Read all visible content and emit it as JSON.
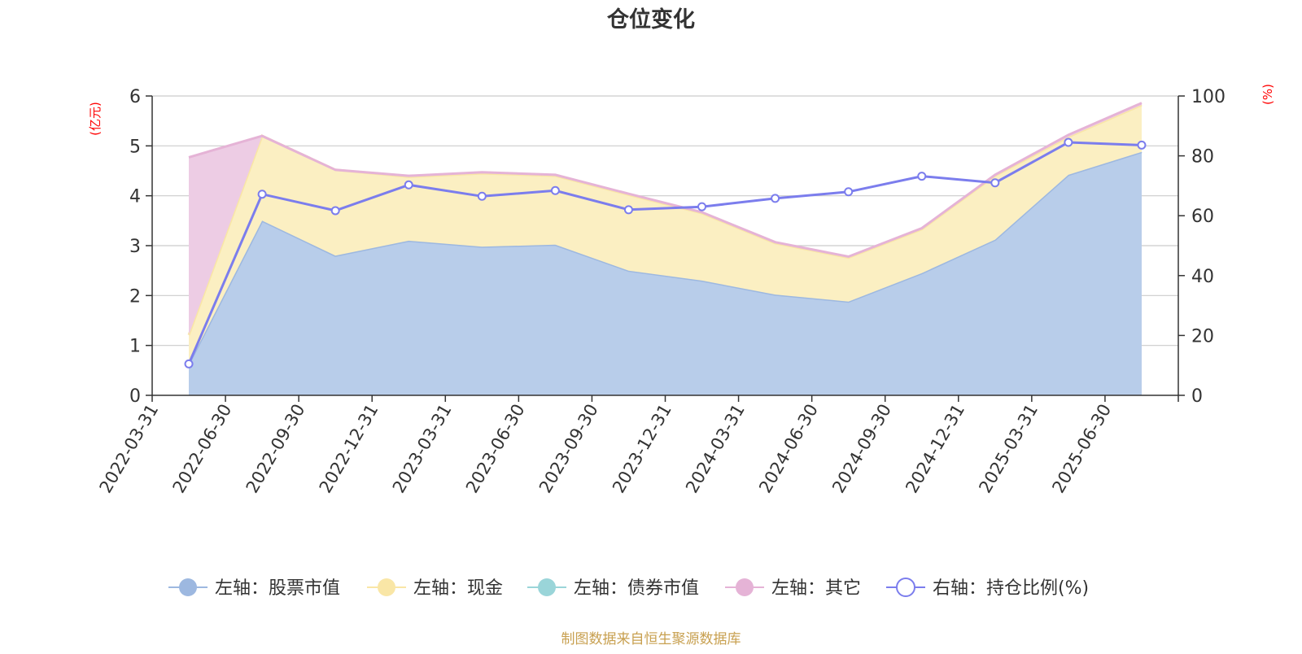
{
  "chart_data": {
    "type": "area",
    "title": "仓位变化",
    "left_axis_unit": "(亿元)",
    "right_axis_unit": "(%)",
    "ylim_left": [
      0,
      6
    ],
    "yticks_left": [
      "0",
      "1",
      "2",
      "3",
      "4",
      "5",
      "6"
    ],
    "ylim_right": [
      0,
      100
    ],
    "yticks_right": [
      "0",
      "20",
      "40",
      "60",
      "80",
      "100"
    ],
    "grid": true,
    "legend_position": "bottom",
    "categories": [
      "2022-03-31",
      "2022-06-30",
      "2022-09-30",
      "2022-12-31",
      "2023-03-31",
      "2023-06-30",
      "2023-09-30",
      "2023-12-31",
      "2024-03-31",
      "2024-06-30",
      "2024-09-30",
      "2024-12-31",
      "2025-03-31",
      "2025-06-30"
    ],
    "series": [
      {
        "name": "左轴：股票市值",
        "axis": "left",
        "kind": "area",
        "color": "#9db8e0",
        "fill": "#b8cdea",
        "values": [
          0.63,
          3.5,
          2.8,
          3.1,
          2.98,
          3.02,
          2.5,
          2.3,
          2.02,
          1.88,
          2.45,
          3.12,
          4.42,
          4.88
        ]
      },
      {
        "name": "左轴：现金",
        "axis": "left",
        "kind": "area",
        "color": "#f9e6a6",
        "fill": "#fbefc2",
        "values": [
          0.58,
          1.7,
          1.72,
          1.28,
          1.47,
          1.38,
          1.52,
          1.35,
          1.03,
          0.88,
          0.88,
          1.28,
          0.76,
          0.94
        ]
      },
      {
        "name": "左轴：债券市值",
        "axis": "left",
        "kind": "area",
        "color": "#9ad5d9",
        "fill": "#b7e2e4",
        "values": [
          0,
          0,
          0,
          0,
          0,
          0,
          0,
          0,
          0,
          0,
          0,
          0,
          0,
          0
        ]
      },
      {
        "name": "左轴：其它",
        "axis": "left",
        "kind": "area",
        "color": "#e5b3d6",
        "fill": "#edcce4",
        "values": [
          3.56,
          0.0,
          0.0,
          0.02,
          0.02,
          0.02,
          0.02,
          0.02,
          0.02,
          0.02,
          0.02,
          0.02,
          0.04,
          0.04
        ]
      },
      {
        "name": "右轴：持仓比例(%)",
        "axis": "right",
        "kind": "line",
        "color": "#7b7ded",
        "values": [
          10.5,
          67.2,
          61.7,
          70.3,
          66.5,
          68.4,
          62.0,
          63.0,
          65.8,
          68.0,
          73.2,
          71.0,
          84.5,
          83.6
        ]
      }
    ],
    "source_note": "制图数据来自恒生聚源数据库",
    "colors": {
      "title": "#333333",
      "unit_label": "#ff0000",
      "axis": "#333333",
      "grid": "#cccccc",
      "source_note": "#c8a050"
    }
  }
}
